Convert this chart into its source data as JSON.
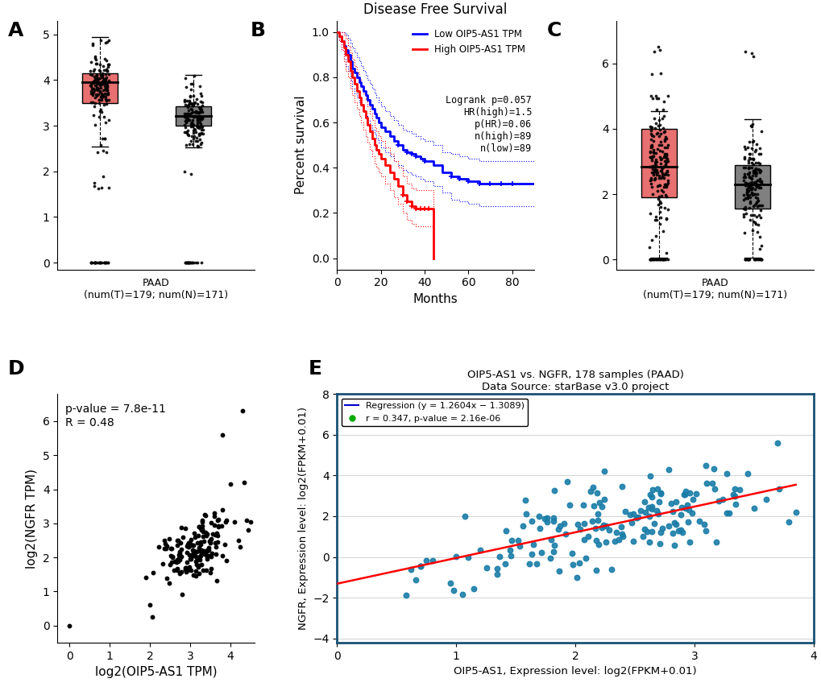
{
  "panel_A": {
    "tumor_box": {
      "q1": 3.5,
      "median": 3.95,
      "q3": 4.15,
      "whisker_low": 2.55,
      "whisker_high": 4.95,
      "color": "#E87070"
    },
    "normal_box": {
      "q1": 3.0,
      "median": 3.22,
      "q3": 3.42,
      "whisker_low": 2.52,
      "whisker_high": 4.12,
      "color": "#808080"
    },
    "xlabel": "PAAD\n(num(T)=179; num(N)=171)",
    "ylim": [
      -0.15,
      5.3
    ],
    "yticks": [
      0,
      1,
      2,
      3,
      4,
      5
    ]
  },
  "panel_B": {
    "title": "Disease Free Survival",
    "xlabel": "Months",
    "ylabel": "Percent survival",
    "legend_lines": [
      "Low OIP5-AS1 TPM",
      "High OIP5-AS1 TPM"
    ],
    "stats_text": "Logrank p=0.057\nHR(high)=1.5\np(HR)=0.06\nn(high)=89\nn(low)=89",
    "xlim": [
      0,
      90
    ],
    "ylim": [
      -0.05,
      1.05
    ],
    "xticks": [
      0,
      20,
      40,
      60,
      80
    ],
    "yticks": [
      0.0,
      0.2,
      0.4,
      0.6,
      0.8,
      1.0
    ]
  },
  "panel_C": {
    "tumor_box": {
      "q1": 1.9,
      "median": 2.85,
      "q3": 4.0,
      "whisker_low": 0.05,
      "whisker_high": 4.55,
      "color": "#E87070"
    },
    "normal_box": {
      "q1": 1.55,
      "median": 2.3,
      "q3": 2.9,
      "whisker_low": 0.05,
      "whisker_high": 4.3,
      "color": "#808080"
    },
    "xlabel": "PAAD\n(num(T)=179; num(N)=171)",
    "ylim": [
      -0.3,
      7.3
    ],
    "yticks": [
      0,
      2,
      4,
      6
    ]
  },
  "panel_D": {
    "xlabel": "log2(OIP5-AS1 TPM)",
    "ylabel": "log2(NGFR TPM)",
    "annotation": "p-value = 7.8e-11\nR = 0.48",
    "xlim": [
      -0.3,
      4.6
    ],
    "ylim": [
      -0.5,
      6.8
    ],
    "xticks": [
      0,
      1,
      2,
      3,
      4
    ],
    "yticks": [
      0,
      1,
      2,
      3,
      4,
      5,
      6
    ]
  },
  "panel_E": {
    "title": "OIP5-AS1 vs. NGFR, 178 samples (PAAD)",
    "subtitle": "Data Source: starBase v3.0 project",
    "xlabel": "OIP5-AS1, Expression level: log2(FPKM+0.01)",
    "ylabel": "NGFR, Expression level: log2(FPKM+0.01)",
    "regression_label": "Regression (y = 1.2604x − 1.3089)",
    "correlation_label": "r = 0.347, p-value = 2.16e-06",
    "dot_color": "#1A7DA8",
    "regression_line_color": "#0000CC",
    "regression_draw_color": "#FF0000",
    "corr_dot_color": "#00AA00",
    "xlim": [
      0,
      4.0
    ],
    "ylim": [
      -4.2,
      7.5
    ],
    "xticks": [
      0,
      1,
      2,
      3,
      4
    ],
    "yticks": [
      -4,
      -2,
      0,
      2,
      4,
      6,
      8
    ],
    "border_color": "#1A5276"
  },
  "background_color": "#FFFFFF",
  "panel_labels_fontsize": 18,
  "axis_fontsize": 11,
  "tick_fontsize": 10
}
